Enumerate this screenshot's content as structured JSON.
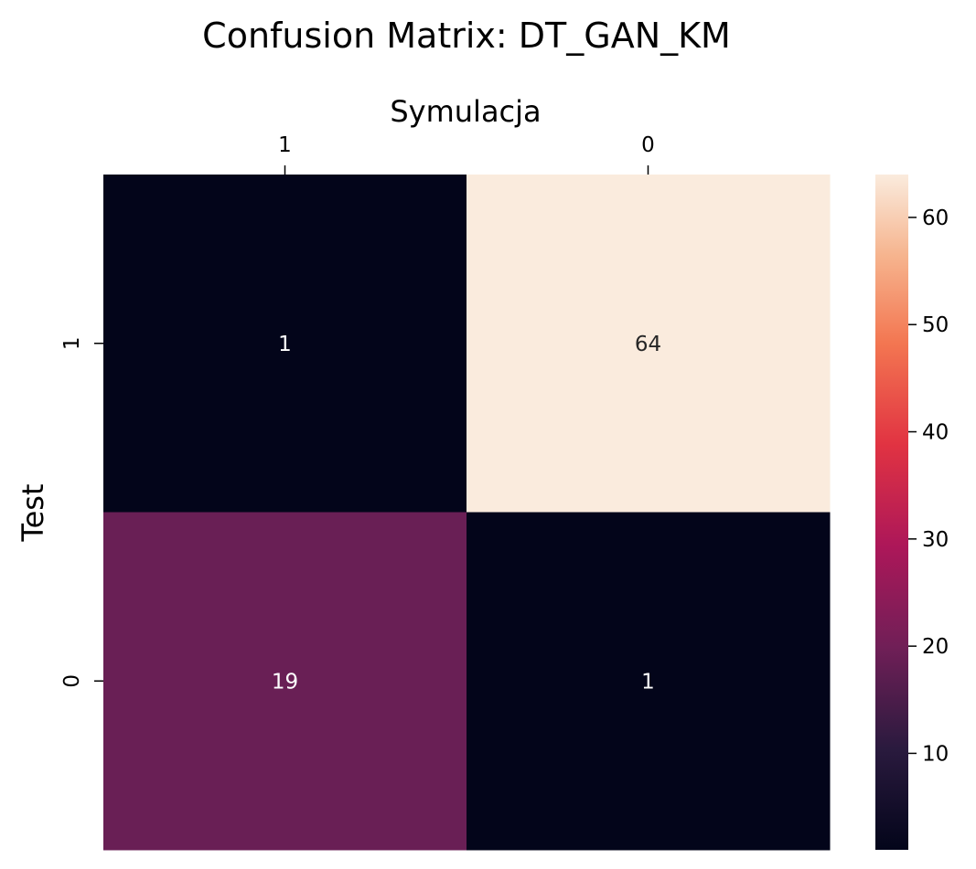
{
  "chart_data": {
    "type": "heatmap",
    "title": "Confusion Matrix: DT_GAN_KM",
    "xlabel": "Symulacja",
    "ylabel": "Test",
    "x_categories": [
      "1",
      "0"
    ],
    "y_categories": [
      "1",
      "0"
    ],
    "values": [
      [
        1,
        64
      ],
      [
        19,
        1
      ]
    ],
    "x_axis_position": "top",
    "colormap": "rocket",
    "colorbar": {
      "range": [
        1,
        64
      ],
      "ticks": [
        10,
        20,
        30,
        40,
        50,
        60
      ]
    }
  }
}
